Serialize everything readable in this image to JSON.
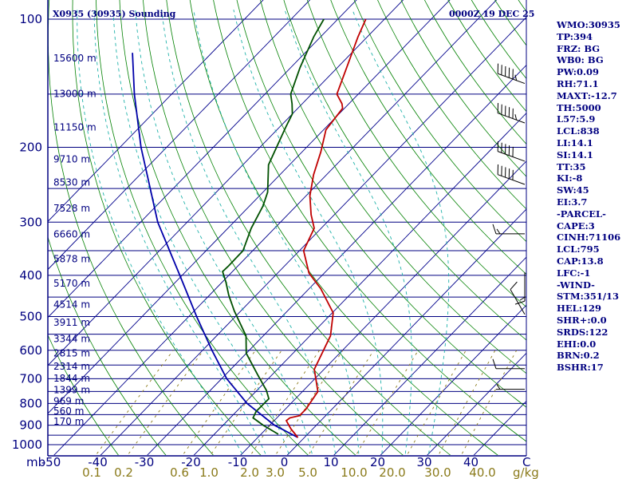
{
  "header": {
    "station": "X0935 (30935) Sounding",
    "datetime": "0000Z 19 DEC 25"
  },
  "colors": {
    "axis": "#000080",
    "isobar": "#000080",
    "isotherm": "#00008b",
    "dry_adiabat": "#008000",
    "moist_adiabat": "#20b2aa",
    "mixing_ratio": "#8a7a1a",
    "temperature": "#c00000",
    "dewpoint": "#005000",
    "parcel": "#0000aa",
    "wind": "#000000"
  },
  "chart_data": {
    "type": "skew-t log-p sounding",
    "pressure_axis_label": "mb",
    "pressure_ticks": [
      100,
      200,
      300,
      400,
      500,
      600,
      700,
      800,
      900,
      1000
    ],
    "isobars": [
      100,
      150,
      200,
      250,
      300,
      350,
      400,
      450,
      500,
      550,
      600,
      650,
      700,
      750,
      800,
      850,
      900,
      950,
      1000
    ],
    "temperature_ticks": [
      -50,
      -40,
      -30,
      -20,
      -10,
      0,
      10,
      20,
      30,
      40
    ],
    "temperature_unit": "C",
    "isotherms": [
      -100,
      -90,
      -80,
      -70,
      -60,
      -50,
      -40,
      -30,
      -20,
      -10,
      0,
      10,
      20,
      30,
      40
    ],
    "dry_adiabats_theta_c": [
      -40,
      -30,
      -20,
      -10,
      0,
      10,
      20,
      30,
      40,
      50,
      60,
      70,
      80,
      90,
      100,
      110,
      120,
      130,
      140,
      150,
      160,
      170,
      180
    ],
    "moist_adiabats_start_c": [
      -10,
      -5,
      0,
      5,
      10,
      15,
      20,
      25,
      30
    ],
    "mixing_ratio_labels": [
      "0.1",
      "0.2",
      "0.6",
      "1.0",
      "2.0",
      "3.0",
      "5.0",
      "10.0",
      "20.0",
      "30.0",
      "40.0"
    ],
    "mixing_ratio_unit": "g/kg",
    "height_labels": [
      {
        "p": 150,
        "label": "15600 m"
      },
      {
        "p": 182,
        "label": "13000 m"
      },
      {
        "p": 218,
        "label": "11150 m"
      },
      {
        "p": 259,
        "label": "9710 m"
      },
      {
        "p": 294,
        "label": "8530 m"
      },
      {
        "p": 338,
        "label": "7528 m"
      },
      {
        "p": 389,
        "label": "6660 m"
      },
      {
        "p": 445,
        "label": "5878 m"
      },
      {
        "p": 508,
        "label": "5170 m"
      },
      {
        "p": 569,
        "label": "4514 m"
      },
      {
        "p": 627,
        "label": "3911 m"
      },
      {
        "p": 685,
        "label": "3344 m"
      },
      {
        "p": 740,
        "label": "2815 m"
      },
      {
        "p": 796,
        "label": "2314 m"
      },
      {
        "p": 849,
        "label": "1844 m"
      },
      {
        "p": 904,
        "label": "1399 m"
      },
      {
        "p": 960,
        "label": "969 m"
      },
      {
        "p": 1014,
        "label": "560 m"
      },
      {
        "p": 1072,
        "label": "170 m"
      }
    ],
    "temperature_profile": [
      {
        "p": 962,
        "t": -1.4
      },
      {
        "p": 918,
        "t": -4.7
      },
      {
        "p": 878,
        "t": -7.4
      },
      {
        "p": 865,
        "t": -7.2
      },
      {
        "p": 855,
        "t": -5.6
      },
      {
        "p": 825,
        "t": -5.6
      },
      {
        "p": 750,
        "t": -6.7
      },
      {
        "p": 665,
        "t": -12.1
      },
      {
        "p": 555,
        "t": -15.6
      },
      {
        "p": 490,
        "t": -19.8
      },
      {
        "p": 430,
        "t": -27.5
      },
      {
        "p": 395,
        "t": -33.3
      },
      {
        "p": 350,
        "t": -39.1
      },
      {
        "p": 310,
        "t": -41.5
      },
      {
        "p": 288,
        "t": -45.0
      },
      {
        "p": 260,
        "t": -49.2
      },
      {
        "p": 232,
        "t": -52.8
      },
      {
        "p": 205,
        "t": -56.0
      },
      {
        "p": 182,
        "t": -59.5
      },
      {
        "p": 162,
        "t": -60.4
      },
      {
        "p": 158,
        "t": -61.5
      },
      {
        "p": 150,
        "t": -64.6
      },
      {
        "p": 130,
        "t": -68.0
      },
      {
        "p": 110,
        "t": -72.0
      },
      {
        "p": 100,
        "t": -74.0
      }
    ],
    "dewpoint_profile": [
      {
        "p": 945,
        "t": -6.3
      },
      {
        "p": 900,
        "t": -11.4
      },
      {
        "p": 865,
        "t": -15.1
      },
      {
        "p": 835,
        "t": -15.8
      },
      {
        "p": 780,
        "t": -15.7
      },
      {
        "p": 745,
        "t": -18.0
      },
      {
        "p": 685,
        "t": -23.1
      },
      {
        "p": 610,
        "t": -30.0
      },
      {
        "p": 555,
        "t": -33.7
      },
      {
        "p": 485,
        "t": -41.4
      },
      {
        "p": 445,
        "t": -45.9
      },
      {
        "p": 415,
        "t": -49.2
      },
      {
        "p": 392,
        "t": -52.1
      },
      {
        "p": 380,
        "t": -52.0
      },
      {
        "p": 350,
        "t": -52.1
      },
      {
        "p": 310,
        "t": -55.0
      },
      {
        "p": 275,
        "t": -57.1
      },
      {
        "p": 255,
        "t": -59.0
      },
      {
        "p": 220,
        "t": -64.5
      },
      {
        "p": 180,
        "t": -68.6
      },
      {
        "p": 167,
        "t": -70.0
      },
      {
        "p": 158,
        "t": -72.2
      },
      {
        "p": 150,
        "t": -74.5
      },
      {
        "p": 130,
        "t": -78.0
      },
      {
        "p": 110,
        "t": -81.5
      },
      {
        "p": 100,
        "t": -83.0
      }
    ],
    "parcel_profile": [
      {
        "p": 962,
        "t": -1.4
      },
      {
        "p": 900,
        "t": -9.0
      },
      {
        "p": 800,
        "t": -19.4
      },
      {
        "p": 700,
        "t": -28.9
      },
      {
        "p": 600,
        "t": -38.0
      },
      {
        "p": 500,
        "t": -48.3
      },
      {
        "p": 400,
        "t": -60.5
      },
      {
        "p": 300,
        "t": -76.3
      },
      {
        "p": 200,
        "t": -95.5
      },
      {
        "p": 150,
        "t": -108.0
      },
      {
        "p": 120,
        "t": -117.0
      }
    ],
    "wind_barbs": [
      {
        "p": 172,
        "dir": 290,
        "kt": 55
      },
      {
        "p": 213,
        "dir": 290,
        "kt": 55
      },
      {
        "p": 262,
        "dir": 290,
        "kt": 50
      },
      {
        "p": 297,
        "dir": 290,
        "kt": 50
      },
      {
        "p": 388,
        "dir": 270,
        "kt": 15
      },
      {
        "p": 478,
        "dir": 180,
        "kt": 15
      },
      {
        "p": 600,
        "dir": 330,
        "kt": 10
      },
      {
        "p": 805,
        "dir": 270,
        "kt": 10
      },
      {
        "p": 900,
        "dir": 270,
        "kt": 5
      }
    ]
  },
  "indices": [
    "WMO:30935",
    "TP:394",
    "FRZ: BG",
    "WB0: BG",
    "PW:0.09",
    "RH:71.1",
    "MAXT:-12.7",
    "TH:5000",
    "L57:5.9",
    "LCL:838",
    "LI:14.1",
    "SI:14.1",
    "TT:35",
    "KI:-8",
    "SW:45",
    "EI:3.7",
    "-PARCEL-",
    "CAPE:3",
    "CINH:71106",
    "LCL:795",
    "CAP:13.8",
    "LFC:-1",
    "-WIND-",
    "STM:351/13",
    "HEL:129",
    "SHR+:0.0",
    "SRDS:122",
    "EHI:0.0",
    "BRN:0.2",
    "BSHR:17"
  ]
}
